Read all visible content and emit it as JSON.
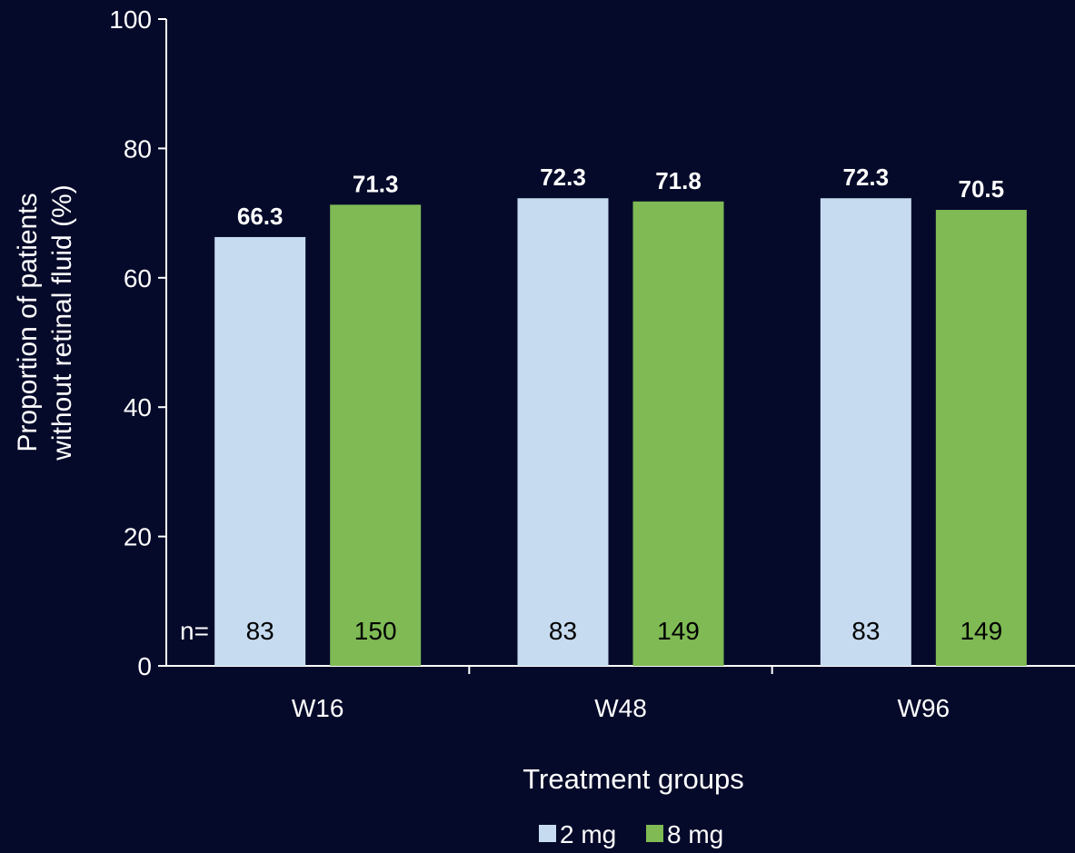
{
  "colors": {
    "background": "#050a2a",
    "axis": "#ffffff",
    "text": "#ffffff",
    "bar_2mg": "#c6dbef",
    "bar_8mg": "#7fba55",
    "n_text": "#000000"
  },
  "chart_data": {
    "type": "bar",
    "categories": [
      "W16",
      "W48",
      "W96"
    ],
    "series": [
      {
        "name": "2 mg",
        "values": [
          66.3,
          72.3,
          72.3
        ],
        "n": [
          83,
          83,
          83
        ],
        "color": "#c6dbef"
      },
      {
        "name": "8 mg",
        "values": [
          71.3,
          71.8,
          70.5
        ],
        "n": [
          150,
          149,
          149
        ],
        "color": "#7fba55"
      }
    ],
    "data_labels": [
      [
        "66.3",
        "72.3",
        "72.3"
      ],
      [
        "71.3",
        "71.8",
        "70.5"
      ]
    ],
    "n_prefix": "n=",
    "xlabel": "Treatment groups",
    "ylabel_line1": "Proportion of patients",
    "ylabel_line2": "without retinal fluid (%)",
    "ylim": [
      0,
      100
    ],
    "yticks": [
      0,
      20,
      40,
      60,
      80,
      100
    ],
    "ytick_labels": [
      "0",
      "20",
      "40",
      "60",
      "80",
      "100"
    ],
    "grid": false,
    "legend_position": "bottom-center"
  }
}
